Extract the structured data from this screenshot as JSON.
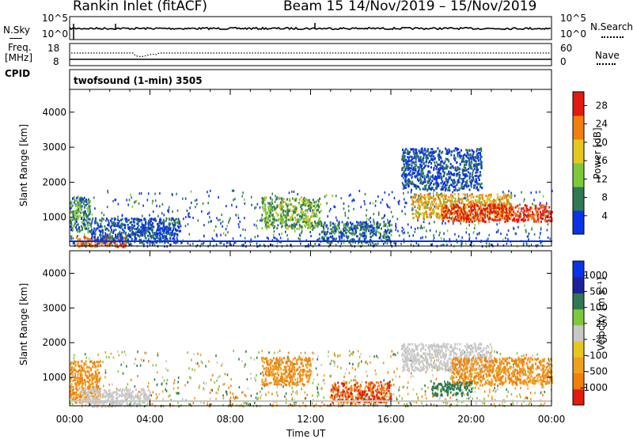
{
  "header": {
    "station": "Rankin Inlet (fitACF)",
    "beam": "Beam 15",
    "dates": "14/Nov/2019 – 15/Nov/2019"
  },
  "noise_panel": {
    "left_label": "N.Sky",
    "left_ticks": [
      "10^5",
      "10^0"
    ],
    "right_label": "N.Search",
    "right_ticks": [
      "10^5",
      "10^0"
    ]
  },
  "freq_panel": {
    "left_label_1": "Freq.",
    "left_label_2": "[MHz]",
    "left_ticks": [
      "18",
      "8"
    ],
    "right_label": "Nave",
    "right_ticks": [
      "60",
      "0"
    ]
  },
  "cpid": {
    "label": "CPID",
    "program": "twofsound (1-min) 3505"
  },
  "colors": {
    "blue": "#0b33e6",
    "darkgreen": "#2f7a52",
    "green": "#7ec83b",
    "yellow": "#e8c620",
    "orange": "#f07f0e",
    "red": "#e21a10",
    "grey": "#c8c8c8",
    "navy": "#20209a"
  },
  "chart_data": [
    {
      "type": "heatmap",
      "title": "Power",
      "ylabel": "Slant Range [km]",
      "xlabel": "",
      "y_ticks": [
        "1000",
        "2000",
        "3000",
        "4000"
      ],
      "ylim": [
        180,
        4650
      ],
      "x_ticks": [
        "00:00",
        "04:00",
        "08:00",
        "12:00",
        "16:00",
        "20:00",
        "00:00"
      ],
      "xlim_hours": [
        0,
        24
      ],
      "colorbar": {
        "label": "Power [dB]",
        "ticks": [
          "28",
          "24",
          "20",
          "16",
          "12",
          "8",
          "4"
        ],
        "range": [
          0,
          31
        ],
        "colors_bottom_to_top": [
          "#0b33e6",
          "#2f7a52",
          "#7ec83b",
          "#e8c620",
          "#f07f0e",
          "#e21a10"
        ]
      },
      "features": [
        {
          "t0": 0.0,
          "t1": 1.0,
          "r0": 600,
          "r1": 1600,
          "value": 12
        },
        {
          "t0": 0.3,
          "t1": 2.8,
          "r0": 180,
          "r1": 500,
          "value": 24
        },
        {
          "t0": 1.0,
          "t1": 5.5,
          "r0": 300,
          "r1": 1000,
          "value": 8
        },
        {
          "t0": 9.5,
          "t1": 12.5,
          "r0": 700,
          "r1": 1600,
          "value": 14
        },
        {
          "t0": 12.5,
          "t1": 16.0,
          "r0": 300,
          "r1": 900,
          "value": 10
        },
        {
          "t0": 17.0,
          "t1": 22.0,
          "r0": 1000,
          "r1": 1700,
          "value": 20
        },
        {
          "t0": 18.5,
          "t1": 24.0,
          "r0": 900,
          "r1": 1400,
          "value": 28
        },
        {
          "t0": 16.5,
          "t1": 20.5,
          "r0": 1800,
          "r1": 3000,
          "value": 8
        }
      ]
    },
    {
      "type": "heatmap",
      "title": "Velocity",
      "ylabel": "Slant Range [km]",
      "xlabel": "Time UT",
      "y_ticks": [
        "1000",
        "2000",
        "3000",
        "4000"
      ],
      "ylim": [
        180,
        4650
      ],
      "x_ticks": [
        "00:00",
        "04:00",
        "08:00",
        "12:00",
        "16:00",
        "20:00",
        "00:00"
      ],
      "xlim_hours": [
        0,
        24
      ],
      "colorbar": {
        "label": "Velocity [m s⁻¹]",
        "ticks": [
          "1000",
          "500",
          "100",
          "25",
          "-25",
          "-100",
          "-500",
          "-1000"
        ],
        "colors_bottom_to_top": [
          "#e21a10",
          "#f07f0e",
          "#f0a020",
          "#e8c620",
          "#c8c8c8",
          "#7ec83b",
          "#2f7a52",
          "#20209a",
          "#0b33e6"
        ]
      },
      "features": [
        {
          "t0": 0.0,
          "t1": 1.5,
          "r0": 300,
          "r1": 1500,
          "value": -100
        },
        {
          "t0": 0.5,
          "t1": 4.0,
          "r0": 180,
          "r1": 700,
          "value": 0
        },
        {
          "t0": 9.5,
          "t1": 12.0,
          "r0": 800,
          "r1": 1600,
          "value": -100
        },
        {
          "t0": 13.0,
          "t1": 16.0,
          "r0": 300,
          "r1": 900,
          "value": -500
        },
        {
          "t0": 16.5,
          "t1": 21.0,
          "r0": 1200,
          "r1": 2000,
          "value": 0
        },
        {
          "t0": 19.0,
          "t1": 24.0,
          "r0": 800,
          "r1": 1600,
          "value": -100
        },
        {
          "t0": 18.0,
          "t1": 20.0,
          "r0": 500,
          "r1": 900,
          "value": 200
        }
      ]
    }
  ]
}
